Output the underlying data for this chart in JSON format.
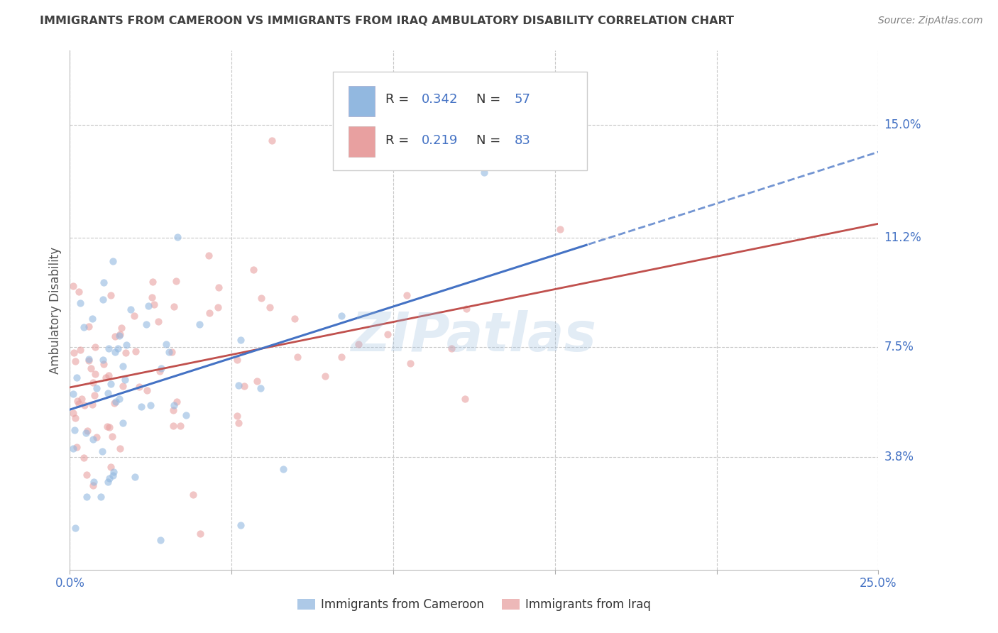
{
  "title": "IMMIGRANTS FROM CAMEROON VS IMMIGRANTS FROM IRAQ AMBULATORY DISABILITY CORRELATION CHART",
  "source": "Source: ZipAtlas.com",
  "ylabel": "Ambulatory Disability",
  "xlim": [
    0.0,
    0.25
  ],
  "ylim": [
    0.0,
    0.175
  ],
  "ytick_positions": [
    0.038,
    0.075,
    0.112,
    0.15
  ],
  "ytick_labels": [
    "3.8%",
    "7.5%",
    "11.2%",
    "15.0%"
  ],
  "cameroon_color": "#92b8e0",
  "iraq_color": "#e8a0a0",
  "cameroon_line_color": "#4472c4",
  "iraq_line_color": "#c0504d",
  "cameroon_R": 0.342,
  "cameroon_N": 57,
  "iraq_R": 0.219,
  "iraq_N": 83,
  "legend_label_cameroon": "Immigrants from Cameroon",
  "legend_label_iraq": "Immigrants from Iraq",
  "watermark": "ZIPatlas",
  "background_color": "#ffffff",
  "grid_color": "#c8c8c8",
  "axis_label_color": "#4472c4",
  "title_color": "#404040",
  "source_color": "#808080"
}
